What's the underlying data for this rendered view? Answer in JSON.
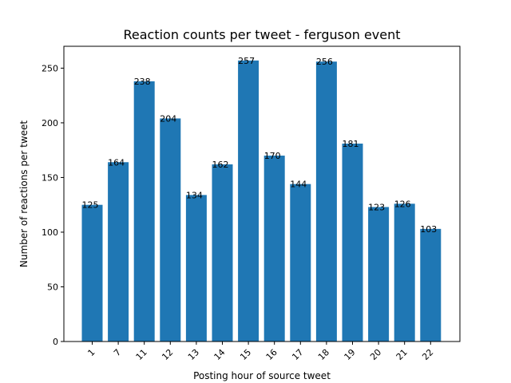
{
  "chart_data": {
    "type": "bar",
    "title": "Reaction counts per tweet - ferguson event",
    "xlabel": "Posting hour of source tweet",
    "ylabel": "Number of reactions per tweet",
    "categories": [
      "1",
      "7",
      "11",
      "12",
      "13",
      "14",
      "15",
      "16",
      "17",
      "18",
      "19",
      "20",
      "21",
      "22"
    ],
    "values": [
      125,
      164,
      238,
      204,
      134,
      162,
      257,
      170,
      144,
      256,
      181,
      123,
      126,
      103
    ],
    "ylim": [
      0,
      270
    ],
    "yticks": [
      0,
      50,
      100,
      150,
      200,
      250
    ],
    "bar_color": "#1f77b4",
    "grid": false,
    "legend": "none"
  }
}
